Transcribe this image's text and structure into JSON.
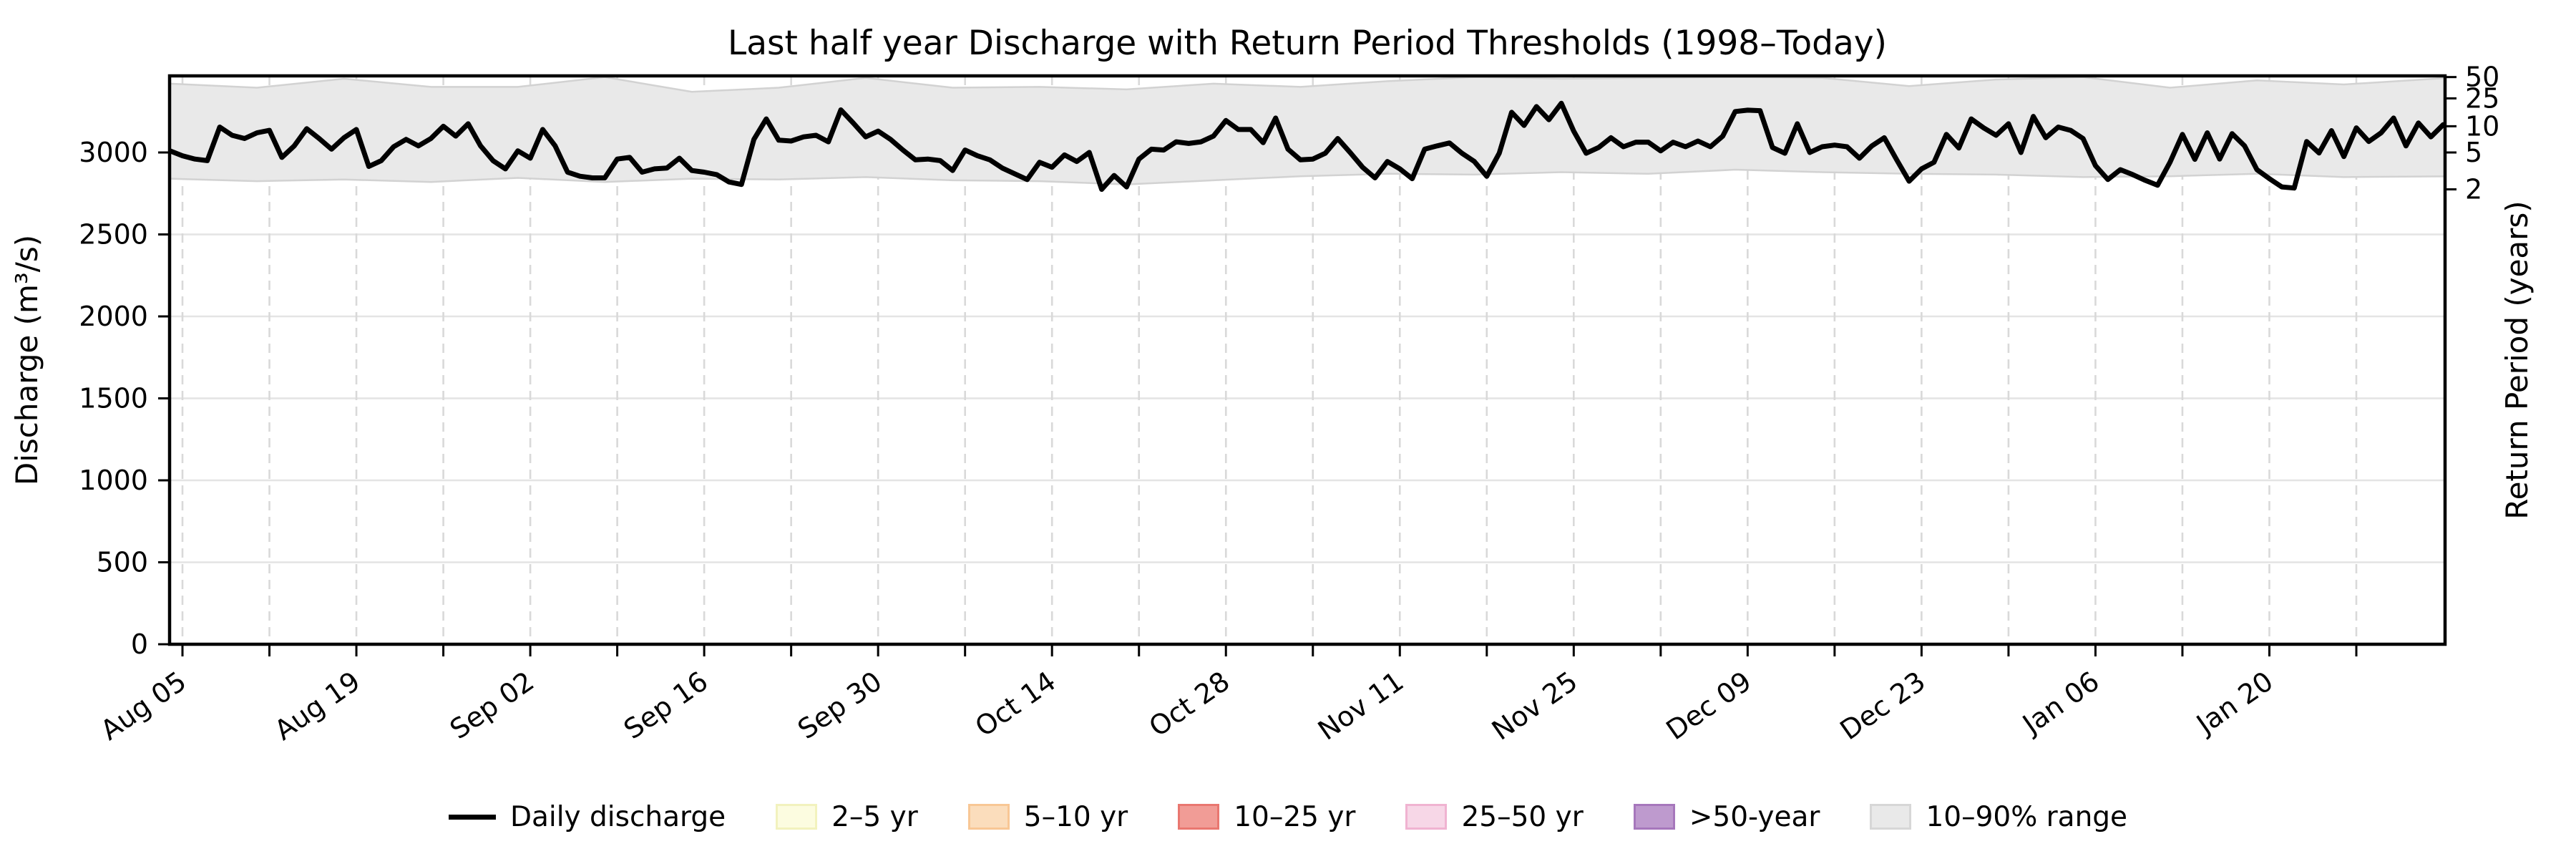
{
  "chart_data": {
    "type": "line",
    "title": "Last half year Discharge with Return Period Thresholds (1998–Today)",
    "ylabel_left": "Discharge (m³/s)",
    "ylabel_right": "Return Period (years)",
    "ylim": [
      0,
      3465
    ],
    "grid": "on",
    "yticks_left": [
      0,
      500,
      1000,
      1500,
      2000,
      2500,
      3000
    ],
    "xticks": [
      "Aug 05",
      "Aug 19",
      "Sep 02",
      "Sep 16",
      "Sep 30",
      "Oct 14",
      "Oct 28",
      "Nov 11",
      "Nov 25",
      "Dec 09",
      "Dec 23",
      "Jan 06",
      "Jan 20"
    ],
    "x_major_tick_interval_days": 14,
    "x_minor_tick_interval_days": 7,
    "right_axis_ticks": [
      {
        "label": "2",
        "discharge": 2775
      },
      {
        "label": "5",
        "discharge": 3000
      },
      {
        "label": "10",
        "discharge": 3160
      },
      {
        "label": "25",
        "discharge": 3330
      },
      {
        "label": "50",
        "discharge": 3460
      }
    ],
    "return_period_thresholds_m3s": {
      "2": 2775,
      "5": 3000,
      "10": 3160,
      "25": 3330,
      "50": 3460
    },
    "daily_discharge": {
      "name": "Daily discharge",
      "start_date": "Aug 04",
      "end_date": "Feb 03",
      "step_days": 1,
      "values": [
        3010,
        2980,
        2960,
        2950,
        3155,
        3105,
        3085,
        3120,
        3135,
        2970,
        3040,
        3145,
        3085,
        3020,
        3090,
        3140,
        2915,
        2950,
        3035,
        3080,
        3040,
        3085,
        3160,
        3100,
        3175,
        3040,
        2950,
        2900,
        3010,
        2965,
        3140,
        3040,
        2880,
        2855,
        2845,
        2845,
        2960,
        2970,
        2880,
        2900,
        2905,
        2965,
        2890,
        2880,
        2865,
        2820,
        2805,
        3080,
        3205,
        3075,
        3070,
        3095,
        3105,
        3065,
        3260,
        3180,
        3095,
        3130,
        3080,
        3015,
        2955,
        2960,
        2950,
        2890,
        3015,
        2980,
        2955,
        2905,
        2870,
        2835,
        2940,
        2910,
        2985,
        2945,
        3000,
        2775,
        2860,
        2790,
        2960,
        3020,
        3015,
        3065,
        3055,
        3065,
        3100,
        3195,
        3140,
        3140,
        3060,
        3210,
        3020,
        2955,
        2960,
        2995,
        3085,
        3000,
        2910,
        2845,
        2945,
        2900,
        2840,
        3020,
        3040,
        3058,
        2995,
        2945,
        2855,
        2995,
        3245,
        3165,
        3280,
        3200,
        3300,
        3130,
        2995,
        3030,
        3090,
        3035,
        3063,
        3063,
        3010,
        3063,
        3035,
        3070,
        3035,
        3100,
        3250,
        3258,
        3255,
        3030,
        2995,
        3175,
        3000,
        3035,
        3045,
        3035,
        2965,
        3040,
        3090,
        2955,
        2825,
        2900,
        2940,
        3110,
        3027,
        3205,
        3150,
        3105,
        3175,
        3000,
        3220,
        3090,
        3155,
        3135,
        3085,
        2920,
        2835,
        2895,
        2865,
        2830,
        2800,
        2940,
        3110,
        2958,
        3120,
        2960,
        3115,
        3040,
        2895,
        2840,
        2790,
        2783,
        3067,
        2997,
        3133,
        2975,
        3150,
        3067,
        3120,
        3210,
        3040,
        3180,
        3095,
        3170
      ]
    },
    "range_band": {
      "name": "10–90% range",
      "start_date": "Aug 04",
      "step_days": 7,
      "upper": [
        3420,
        3395,
        3450,
        3400,
        3400,
        3460,
        3370,
        3395,
        3455,
        3395,
        3400,
        3385,
        3420,
        3400,
        3435,
        3460,
        3450,
        3455,
        3460,
        3455,
        3405,
        3445,
        3460,
        3395,
        3440,
        3415,
        3460
      ],
      "lower": [
        2840,
        2825,
        2835,
        2820,
        2845,
        2820,
        2840,
        2835,
        2850,
        2830,
        2825,
        2805,
        2830,
        2855,
        2870,
        2865,
        2880,
        2870,
        2895,
        2880,
        2870,
        2865,
        2850,
        2855,
        2870,
        2850,
        2855
      ]
    },
    "legend": [
      {
        "label": "Daily discharge",
        "type": "line",
        "color": "#000000"
      },
      {
        "label": "2–5 yr",
        "type": "patch",
        "fill": "#FCFCE0",
        "edge": "#F2F2BE"
      },
      {
        "label": "5–10 yr",
        "type": "patch",
        "fill": "#FBDDBC",
        "edge": "#F8C795"
      },
      {
        "label": "10–25 yr",
        "type": "patch",
        "fill": "#F19C96",
        "edge": "#E97770"
      },
      {
        "label": "25–50 yr",
        "type": "patch",
        "fill": "#F7D7E7",
        "edge": "#F0B3D1"
      },
      {
        "label": ">50-year",
        "type": "patch",
        "fill": "#BE9ACE",
        "edge": "#A677BC"
      },
      {
        "label": "10–90% range",
        "type": "patch",
        "fill": "#E9E9E9",
        "edge": "#D7D7D7"
      }
    ],
    "legend_position": "bottom-center",
    "colors": {
      "line": "#000000",
      "band_fill": "#E9E9E9",
      "band_edge": "#D2D2D2",
      "grid_horizontal": "#E4E4E4",
      "grid_vertical_dashed": "#D9D9D9",
      "background": "#FFFFFF",
      "text": "#000000"
    }
  }
}
